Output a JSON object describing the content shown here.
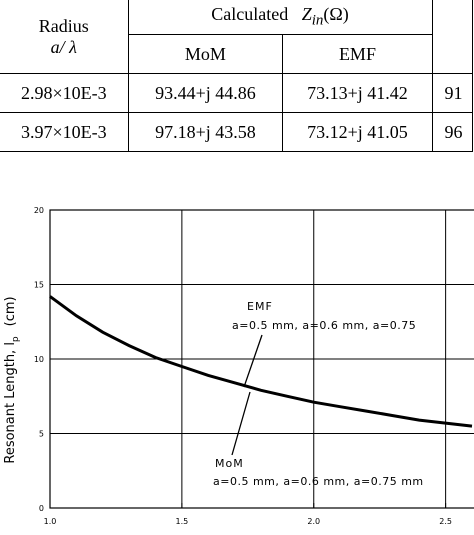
{
  "table": {
    "header": {
      "radius": "Radius",
      "radius_unit": "a/ λ",
      "calculated": "Calculated",
      "z": "Z",
      "z_sub": "in",
      "z_unit": "(Ω)",
      "mom": "MoM",
      "emf": "EMF"
    },
    "rows": [
      [
        "2.98×10E-3",
        "93.44+j 44.86",
        "73.13+j 41.42",
        "91"
      ],
      [
        "3.97×10E-3",
        "97.18+j 43.58",
        "73.12+j 41.05",
        "96"
      ]
    ]
  },
  "chart_data": {
    "type": "line",
    "y_label": "Resonant Length, l",
    "y_label_sub": "p",
    "y_label_unit": "(cm)",
    "x": [
      1.0,
      1.1,
      1.2,
      1.3,
      1.4,
      1.5,
      1.6,
      1.7,
      1.8,
      1.9,
      2.0,
      2.1,
      2.2,
      2.3,
      2.4,
      2.5,
      2.6
    ],
    "values": [
      14.2,
      12.9,
      11.8,
      10.9,
      10.1,
      9.5,
      8.9,
      8.4,
      7.9,
      7.5,
      7.1,
      6.8,
      6.5,
      6.2,
      5.9,
      5.7,
      5.5
    ],
    "color": "#000000",
    "xlim": [
      1.0,
      2.6
    ],
    "ylim": [
      0,
      20
    ],
    "xticks": [
      {
        "value": 1.0,
        "label": "1.0"
      },
      1.5,
      {
        "value": 2.0,
        "label": "2.0"
      },
      2.5
    ],
    "yticks": [
      0,
      5,
      10,
      15,
      20
    ],
    "grid": true,
    "annotations": [
      {
        "title": "EMF",
        "text": "a=0.5 mm, a=0.6 mm, a=0.75"
      },
      {
        "title": "MoM",
        "text": "a=0.5 mm, a=0.6 mm, a=0.75 mm"
      }
    ]
  }
}
